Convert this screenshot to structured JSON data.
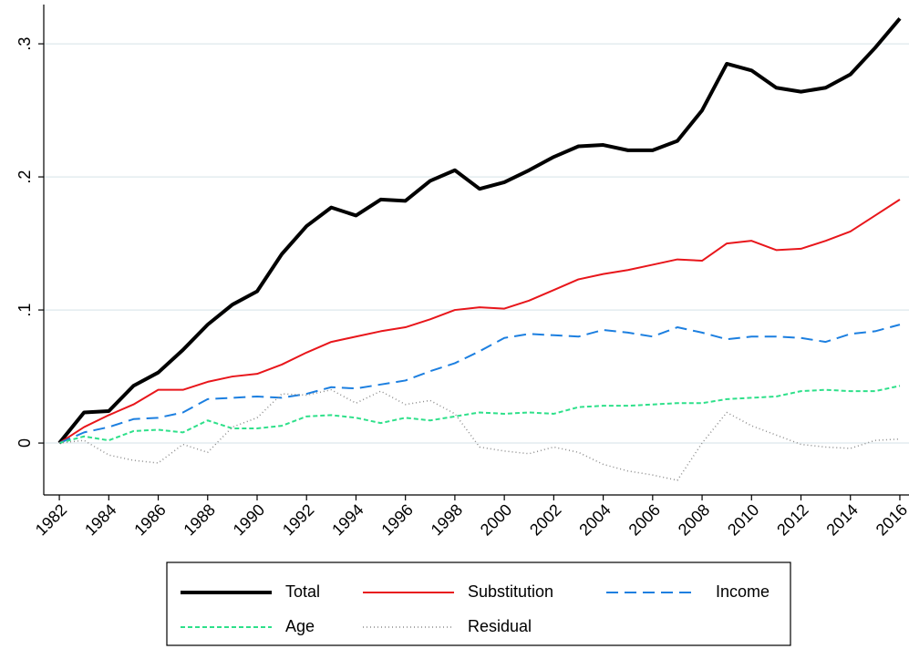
{
  "chart_data": {
    "type": "line",
    "x": [
      1982,
      1983,
      1984,
      1985,
      1986,
      1987,
      1988,
      1989,
      1990,
      1991,
      1992,
      1993,
      1994,
      1995,
      1996,
      1997,
      1998,
      1999,
      2000,
      2001,
      2002,
      2003,
      2004,
      2005,
      2006,
      2007,
      2008,
      2009,
      2010,
      2011,
      2012,
      2013,
      2014,
      2015,
      2016
    ],
    "series": [
      {
        "name": "Total",
        "color": "#000000",
        "linestyle": "solid-thick",
        "values": [
          0,
          0.023,
          0.024,
          0.043,
          0.053,
          0.07,
          0.089,
          0.104,
          0.114,
          0.142,
          0.163,
          0.177,
          0.171,
          0.183,
          0.182,
          0.197,
          0.205,
          0.191,
          0.196,
          0.205,
          0.215,
          0.223,
          0.224,
          0.22,
          0.22,
          0.227,
          0.25,
          0.285,
          0.28,
          0.267,
          0.264,
          0.267,
          0.277,
          0.297,
          0.319
        ]
      },
      {
        "name": "Substitution",
        "color": "#e8161b",
        "linestyle": "solid",
        "values": [
          0,
          0.012,
          0.021,
          0.029,
          0.04,
          0.04,
          0.046,
          0.05,
          0.052,
          0.059,
          0.068,
          0.076,
          0.08,
          0.084,
          0.087,
          0.093,
          0.1,
          0.102,
          0.101,
          0.107,
          0.115,
          0.123,
          0.127,
          0.13,
          0.134,
          0.138,
          0.137,
          0.15,
          0.152,
          0.145,
          0.146,
          0.152,
          0.159,
          0.171,
          0.183
        ]
      },
      {
        "name": "Income",
        "color": "#1c7fe0",
        "linestyle": "longdash",
        "values": [
          0,
          0.008,
          0.012,
          0.018,
          0.019,
          0.023,
          0.033,
          0.034,
          0.035,
          0.034,
          0.037,
          0.042,
          0.041,
          0.044,
          0.047,
          0.054,
          0.06,
          0.069,
          0.079,
          0.082,
          0.081,
          0.08,
          0.085,
          0.083,
          0.08,
          0.087,
          0.083,
          0.078,
          0.08,
          0.08,
          0.079,
          0.076,
          0.082,
          0.084,
          0.089
        ]
      },
      {
        "name": "Age",
        "color": "#2ee08a",
        "linestyle": "dash",
        "values": [
          0,
          0.005,
          0.002,
          0.009,
          0.01,
          0.008,
          0.017,
          0.011,
          0.011,
          0.013,
          0.02,
          0.021,
          0.019,
          0.015,
          0.019,
          0.017,
          0.02,
          0.023,
          0.022,
          0.023,
          0.022,
          0.027,
          0.028,
          0.028,
          0.029,
          0.03,
          0.03,
          0.033,
          0.034,
          0.035,
          0.039,
          0.04,
          0.039,
          0.039,
          0.043
        ]
      },
      {
        "name": "Residual",
        "color": "#8c8c8c",
        "linestyle": "dot",
        "values": [
          0,
          0.002,
          -0.009,
          -0.013,
          -0.015,
          -0.001,
          -0.007,
          0.012,
          0.019,
          0.037,
          0.036,
          0.04,
          0.03,
          0.039,
          0.029,
          0.032,
          0.022,
          -0.003,
          -0.006,
          -0.008,
          -0.003,
          -0.007,
          -0.016,
          -0.021,
          -0.024,
          -0.028,
          0.0,
          0.023,
          0.013,
          0.006,
          -0.001,
          -0.003,
          -0.004,
          0.002,
          0.003
        ]
      }
    ],
    "xlim": [
      1981.37,
      2016.37
    ],
    "xticks": [
      1982,
      1984,
      1986,
      1988,
      1990,
      1992,
      1994,
      1996,
      1998,
      2000,
      2002,
      2004,
      2006,
      2008,
      2010,
      2012,
      2014,
      2016
    ],
    "ylim": [
      -0.039,
      0.3295
    ],
    "yticks": [
      0,
      {
        "value": 0.1,
        "label": ".1"
      },
      {
        "value": 0.2,
        "label": ".2"
      },
      {
        "value": 0.3,
        "label": ".3"
      }
    ],
    "grid": true,
    "legend": "bottom"
  }
}
